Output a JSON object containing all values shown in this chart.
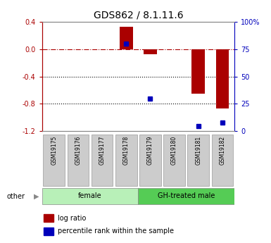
{
  "title": "GDS862 / 8.1.11.6",
  "samples": [
    "GSM19175",
    "GSM19176",
    "GSM19177",
    "GSM19178",
    "GSM19179",
    "GSM19180",
    "GSM19181",
    "GSM19182"
  ],
  "log_ratio": [
    0.0,
    0.0,
    0.0,
    0.33,
    -0.07,
    0.0,
    -0.65,
    -0.87
  ],
  "percentile_rank": [
    null,
    null,
    null,
    80,
    30,
    null,
    5,
    8
  ],
  "groups": [
    {
      "label": "female",
      "start": 0,
      "end": 4,
      "color": "#b8f0b8"
    },
    {
      "label": "GH-treated male",
      "start": 4,
      "end": 8,
      "color": "#66dd66"
    }
  ],
  "bar_color": "#aa0000",
  "dot_color": "#0000bb",
  "zero_line_color": "#aa0000",
  "grid_color": "#000000",
  "ylim_left": [
    -1.2,
    0.4
  ],
  "ylim_right": [
    0,
    100
  ],
  "right_ticks": [
    0,
    25,
    50,
    75,
    100
  ],
  "right_tick_labels": [
    "0",
    "25",
    "50",
    "75",
    "100%"
  ],
  "left_ticks": [
    -1.2,
    -0.8,
    -0.4,
    0.0,
    0.4
  ],
  "legend_items": [
    {
      "color": "#aa0000",
      "label": "log ratio"
    },
    {
      "color": "#0000bb",
      "label": "percentile rank within the sample"
    }
  ],
  "other_label": "other",
  "bar_width": 0.55,
  "tick_label_fontsize": 7,
  "title_fontsize": 10,
  "sample_box_color": "#cccccc",
  "sample_box_edge": "#999999",
  "group_female_color": "#b8f0b8",
  "group_male_color": "#55cc55"
}
